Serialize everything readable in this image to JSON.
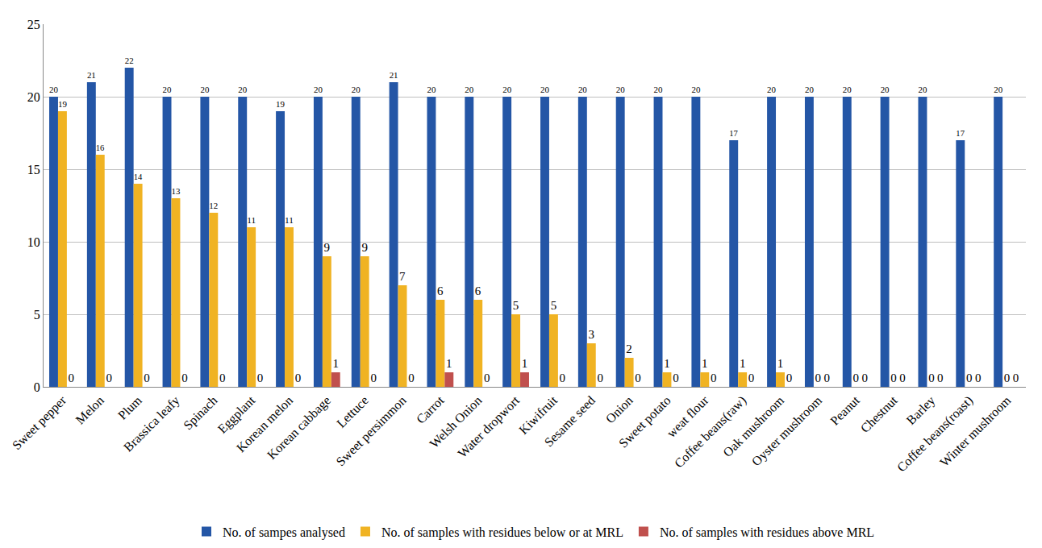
{
  "chart_data": {
    "type": "bar",
    "categories": [
      "Sweet pepper",
      "Melon",
      "Plum",
      "Brassica leafy",
      "Spinach",
      "Eggplant",
      "Korean melon",
      "Korean cabbage",
      "Lettuce",
      "Sweet persimmon",
      "Carrot",
      "Welsh Onion",
      "Water dropwort",
      "Kiwifruit",
      "Sesame seed",
      "Onion",
      "Sweet potato",
      "weat flour",
      "Coffee beans(raw)",
      "Oak mushroom",
      "Oyster mushroom",
      "Peanut",
      "Chestnut",
      "Barley",
      "Coffee beans(roast)",
      "Winter mushroom"
    ],
    "series": [
      {
        "name": "No. of sampes analysed",
        "color": "#2456a6",
        "values": [
          20,
          21,
          22,
          20,
          20,
          20,
          19,
          20,
          20,
          21,
          20,
          20,
          20,
          20,
          20,
          20,
          20,
          20,
          17,
          20,
          20,
          20,
          20,
          20,
          17,
          20
        ]
      },
      {
        "name": "No. of samples with residues below or at MRL",
        "color": "#f0b323",
        "values": [
          19,
          16,
          14,
          13,
          12,
          11,
          11,
          9,
          9,
          7,
          6,
          6,
          5,
          5,
          3,
          2,
          1,
          1,
          1,
          1,
          0,
          0,
          0,
          0,
          0,
          0
        ]
      },
      {
        "name": "No. of samples with residues above MRL",
        "color": "#c0504d",
        "values": [
          0,
          0,
          0,
          0,
          0,
          0,
          0,
          1,
          0,
          0,
          1,
          0,
          1,
          0,
          0,
          0,
          0,
          0,
          0,
          0,
          0,
          0,
          0,
          0,
          0,
          0
        ]
      }
    ],
    "ylim": [
      0,
      25
    ],
    "yticks": [
      0,
      5,
      10,
      15,
      20,
      25
    ],
    "grid": true,
    "legend": "bottom",
    "data_labels": true
  }
}
